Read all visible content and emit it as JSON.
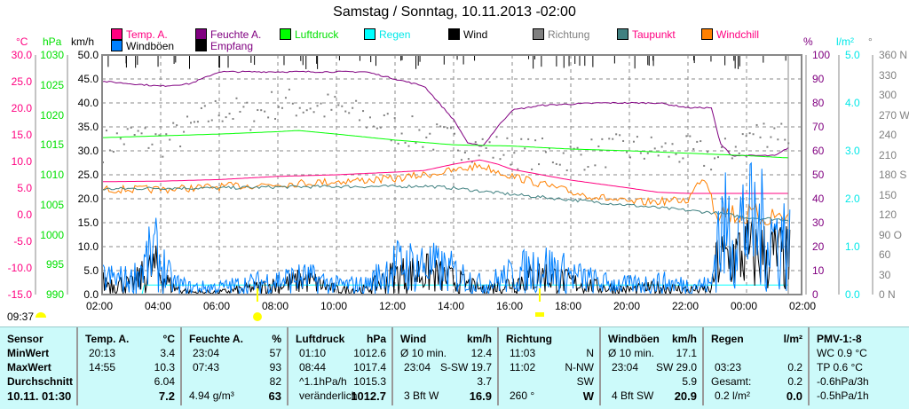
{
  "title": "Samstag / Sonntag, 10.11.2013  -02:00",
  "legend": [
    {
      "label": "Temp. A.",
      "color": "#ff0080",
      "text": "#ff0080"
    },
    {
      "label": "Feuchte A.",
      "color": "#800080",
      "text": "#800080"
    },
    {
      "label": "Luftdruck",
      "color": "#00ff00",
      "text": "#00e000"
    },
    {
      "label": "Regen",
      "color": "#00ffff",
      "text": "#00e8e8"
    },
    {
      "label": "Wind",
      "color": "#000000",
      "text": "#000000"
    },
    {
      "label": "Richtung",
      "color": "#808080",
      "text": "#808080"
    },
    {
      "label": "Taupunkt",
      "color": "#408080",
      "text": "#ff0080"
    },
    {
      "label": "Windchill",
      "color": "#ff8000",
      "text": "#ff0080"
    },
    {
      "label": "Windböen",
      "color": "#0080ff",
      "text": "#000000"
    },
    {
      "label": "Empfang",
      "color": "#000000",
      "text": "#800080"
    }
  ],
  "axes": {
    "temp": {
      "unit": "°C",
      "ticks": [
        "30.0",
        "25.0",
        "20.0",
        "15.0",
        "10.0",
        "5.0",
        "0.0",
        "-5.0",
        "-10.0",
        "-15.0"
      ]
    },
    "press": {
      "unit": "hPa",
      "ticks": [
        "1030",
        "1025",
        "1020",
        "1015",
        "1010",
        "1005",
        "1000",
        "995",
        "990"
      ]
    },
    "wind": {
      "unit": "km/h",
      "ticks": [
        "50.0",
        "45.0",
        "40.0",
        "35.0",
        "30.0",
        "25.0",
        "20.0",
        "15.0",
        "10.0",
        "5.0",
        "0.0"
      ]
    },
    "hum": {
      "unit": "%",
      "ticks": [
        "100",
        "90",
        "80",
        "70",
        "60",
        "50",
        "40",
        "30",
        "20",
        "10",
        "0"
      ]
    },
    "rain": {
      "unit": "l/m²",
      "ticks": [
        "5.0",
        "4.0",
        "3.0",
        "2.0",
        "1.0",
        "0.0"
      ]
    },
    "dir": {
      "unit": "°",
      "ticks": [
        "360 N",
        "330",
        "300",
        "270 W",
        "240",
        "210",
        "180 S",
        "150",
        "120",
        "90  O",
        "60",
        "30",
        "0    N"
      ]
    },
    "time": [
      "02:00",
      "04:00",
      "06:00",
      "08:00",
      "10:00",
      "12:00",
      "14:00",
      "16:00",
      "18:00",
      "20:00",
      "22:00",
      "00:00",
      "02:00"
    ]
  },
  "sun": {
    "current_time": "09:37"
  },
  "chart_data": {
    "type": "line",
    "x_unit": "hours since 02:00",
    "series": [
      {
        "name": "Temp. A.",
        "unit": "°C",
        "points": [
          [
            0,
            6.2
          ],
          [
            2,
            6.3
          ],
          [
            4,
            6.6
          ],
          [
            6,
            7.2
          ],
          [
            8,
            7.5
          ],
          [
            10,
            8
          ],
          [
            11,
            8.3
          ],
          [
            12,
            9.5
          ],
          [
            12.9,
            10.3
          ],
          [
            13.5,
            9.5
          ],
          [
            14,
            8.5
          ],
          [
            16,
            6.5
          ],
          [
            18,
            5
          ],
          [
            19,
            4.2
          ],
          [
            20,
            4
          ],
          [
            21,
            4
          ],
          [
            22,
            4
          ],
          [
            23.5,
            4
          ]
        ]
      },
      {
        "name": "Windchill",
        "unit": "°C",
        "points": [
          [
            0,
            5.5
          ],
          [
            2,
            5.5
          ],
          [
            4,
            6
          ],
          [
            6,
            6.5
          ],
          [
            8,
            7
          ],
          [
            10,
            7.5
          ],
          [
            12,
            9
          ],
          [
            12.9,
            10
          ],
          [
            14,
            8
          ],
          [
            16,
            5
          ],
          [
            18,
            3
          ],
          [
            20,
            3.5
          ],
          [
            20.5,
            8
          ],
          [
            21,
            3
          ],
          [
            22,
            2
          ],
          [
            23.5,
            2
          ]
        ]
      },
      {
        "name": "Taupunkt",
        "unit": "°C",
        "points": [
          [
            0,
            4.8
          ],
          [
            2,
            5
          ],
          [
            4,
            5
          ],
          [
            6,
            5.2
          ],
          [
            8,
            5.3
          ],
          [
            10,
            5.3
          ],
          [
            11,
            5.4
          ],
          [
            12,
            5
          ],
          [
            14,
            3.8
          ],
          [
            16,
            2.8
          ],
          [
            18,
            1.8
          ],
          [
            20,
            0.8
          ],
          [
            21,
            0.3
          ],
          [
            22,
            -0.5
          ],
          [
            23.5,
            -1
          ]
        ]
      },
      {
        "name": "Feuchte A.",
        "unit": "%",
        "points": [
          [
            0,
            89
          ],
          [
            1,
            88
          ],
          [
            2,
            87
          ],
          [
            3,
            88
          ],
          [
            4,
            93
          ],
          [
            6,
            93
          ],
          [
            8,
            93
          ],
          [
            9,
            93
          ],
          [
            10,
            90
          ],
          [
            11,
            87
          ],
          [
            11.5,
            80
          ],
          [
            12,
            73
          ],
          [
            12.5,
            63
          ],
          [
            13,
            62
          ],
          [
            13.5,
            70
          ],
          [
            14,
            77
          ],
          [
            15,
            79
          ],
          [
            17,
            80
          ],
          [
            19,
            80
          ],
          [
            20,
            78
          ],
          [
            20.8,
            78
          ],
          [
            21.1,
            63
          ],
          [
            21.5,
            58
          ],
          [
            22,
            58
          ],
          [
            23,
            58
          ],
          [
            23.5,
            62
          ]
        ]
      },
      {
        "name": "Luftdruck",
        "unit": "hPa",
        "points": [
          [
            0,
            1016.2
          ],
          [
            2,
            1016.5
          ],
          [
            4,
            1016.8
          ],
          [
            6,
            1017.2
          ],
          [
            6.7,
            1017.4
          ],
          [
            8,
            1016.8
          ],
          [
            10,
            1015.8
          ],
          [
            12,
            1015
          ],
          [
            14,
            1014.8
          ],
          [
            16,
            1014.3
          ],
          [
            18,
            1014
          ],
          [
            20,
            1013.6
          ],
          [
            22,
            1013.2
          ],
          [
            23.5,
            1012.8
          ]
        ]
      },
      {
        "name": "Regen",
        "unit": "l/m²",
        "points": [
          [
            0,
            0
          ],
          [
            1.38,
            0
          ],
          [
            1.4,
            0.2
          ],
          [
            23.5,
            0.2
          ]
        ]
      },
      {
        "name": "Wind",
        "unit": "km/h",
        "envelope": [
          [
            0,
            5
          ],
          [
            1,
            4
          ],
          [
            1.8,
            11
          ],
          [
            2.4,
            3
          ],
          [
            3,
            1
          ],
          [
            4,
            1
          ],
          [
            6,
            4
          ],
          [
            7,
            6
          ],
          [
            8,
            2
          ],
          [
            9,
            2
          ],
          [
            10,
            8
          ],
          [
            11,
            9
          ],
          [
            12,
            6
          ],
          [
            13,
            2
          ],
          [
            14,
            5
          ],
          [
            15,
            8
          ],
          [
            16,
            5
          ],
          [
            17,
            3
          ],
          [
            18,
            2
          ],
          [
            19,
            3
          ],
          [
            20,
            2
          ],
          [
            20.8,
            2
          ],
          [
            21,
            14
          ],
          [
            22,
            17
          ],
          [
            23,
            16
          ],
          [
            23.5,
            14
          ]
        ]
      },
      {
        "name": "Windböen",
        "unit": "km/h",
        "envelope": [
          [
            0,
            7
          ],
          [
            1,
            6
          ],
          [
            1.8,
            17
          ],
          [
            2.4,
            5
          ],
          [
            3,
            3
          ],
          [
            4,
            3
          ],
          [
            6,
            6
          ],
          [
            7,
            7
          ],
          [
            8,
            4
          ],
          [
            9,
            4
          ],
          [
            10,
            12
          ],
          [
            11,
            12
          ],
          [
            12,
            9
          ],
          [
            13,
            4
          ],
          [
            14,
            8
          ],
          [
            15,
            12
          ],
          [
            16,
            8
          ],
          [
            17,
            5
          ],
          [
            18,
            4
          ],
          [
            19,
            5
          ],
          [
            20,
            4
          ],
          [
            20.8,
            4
          ],
          [
            21,
            25
          ],
          [
            22,
            29
          ],
          [
            23,
            24
          ],
          [
            23.5,
            22
          ]
        ]
      },
      {
        "name": "Richtung",
        "unit": "°",
        "points": [
          [
            0,
            225
          ],
          [
            1,
            240
          ],
          [
            2,
            230
          ],
          [
            3,
            250
          ],
          [
            4,
            280
          ],
          [
            5,
            270
          ],
          [
            6,
            290
          ],
          [
            8,
            280
          ],
          [
            10,
            250
          ],
          [
            12,
            230
          ],
          [
            14,
            215
          ],
          [
            16,
            210
          ],
          [
            18,
            220
          ],
          [
            20,
            215
          ],
          [
            21,
            205
          ],
          [
            22,
            240
          ],
          [
            23,
            250
          ],
          [
            23.5,
            240
          ]
        ]
      }
    ],
    "y_ranges": {
      "temp": [
        -15,
        30
      ],
      "press": [
        990,
        1030
      ],
      "wind": [
        0,
        50
      ],
      "hum": [
        0,
        100
      ],
      "rain": [
        0,
        5
      ],
      "dir": [
        0,
        360
      ]
    }
  },
  "table": {
    "headers": [
      {
        "label": "Sensor",
        "unit": ""
      },
      {
        "label": "Temp. A.",
        "unit": "°C"
      },
      {
        "label": "Feuchte A.",
        "unit": "%"
      },
      {
        "label": "Luftdruck",
        "unit": "hPa"
      },
      {
        "label": "Wind",
        "unit": "km/h"
      },
      {
        "label": "Richtung",
        "unit": ""
      },
      {
        "label": "Windböen",
        "unit": "km/h"
      },
      {
        "label": "Regen",
        "unit": "l/m²"
      },
      {
        "label": "PMV-1:-8",
        "unit": ""
      }
    ],
    "rows": [
      [
        [
          "MinWert",
          ""
        ],
        [
          "20:13",
          "3.4"
        ],
        [
          "23:04",
          "57"
        ],
        [
          "01:10",
          "1012.6"
        ],
        [
          "Ø 10 min.",
          "12.4"
        ],
        [
          "11:03",
          "N"
        ],
        [
          "Ø 10 min.",
          "17.1"
        ],
        [
          "",
          ""
        ],
        [
          "WC 0.9 °C",
          ""
        ]
      ],
      [
        [
          "MaxWert",
          ""
        ],
        [
          "14:55",
          "10.3"
        ],
        [
          "07:43",
          "93"
        ],
        [
          "08:44",
          "1017.4"
        ],
        [
          "23:04",
          "S-SW 19.7"
        ],
        [
          "11:02",
          "N-NW"
        ],
        [
          "23:04",
          "SW 29.0"
        ],
        [
          "03:23",
          "0.2"
        ],
        [
          "TP 0.6 °C",
          ""
        ]
      ],
      [
        [
          "Durchschnitt",
          ""
        ],
        [
          "",
          "6.04"
        ],
        [
          "",
          "82"
        ],
        [
          "^1.1hPa/h",
          "1015.3"
        ],
        [
          "",
          "3.7"
        ],
        [
          "",
          "SW"
        ],
        [
          "",
          "5.9"
        ],
        [
          "Gesamt:",
          "0.2"
        ],
        [
          "-0.6hPa/3h",
          ""
        ]
      ],
      [
        [
          "10.11. 01:30",
          ""
        ],
        [
          "",
          "7.2"
        ],
        [
          "4.94 g/m³",
          "63"
        ],
        [
          "veränderlich",
          "1012.7"
        ],
        [
          "3 Bft W",
          "16.9"
        ],
        [
          "260 °",
          "W"
        ],
        [
          "4 Bft SW",
          "20.9"
        ],
        [
          "0.2 l/m²",
          "0.0"
        ],
        [
          "-0.5hPa/1h",
          ""
        ]
      ]
    ]
  }
}
